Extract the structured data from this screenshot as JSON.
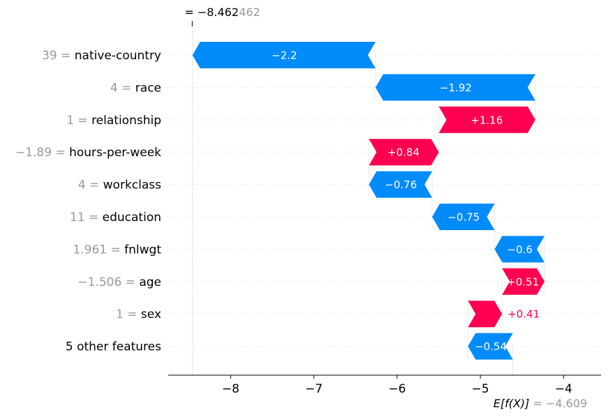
{
  "chart_data": {
    "type": "bar",
    "subtype": "waterfall",
    "fx_value": -8.462,
    "fx_label": "= −8.462",
    "fx_label_grey": "462",
    "base_value": -4.609,
    "base_label_prefix": "E[f(X)]",
    "base_label_value": "= −4.609",
    "xlim": [
      -8.75,
      -3.55
    ],
    "xticks": [
      {
        "value": -8,
        "label": "−8"
      },
      {
        "value": -7,
        "label": "−7"
      },
      {
        "value": -6,
        "label": "−6"
      },
      {
        "value": -5,
        "label": "−5"
      },
      {
        "value": -4,
        "label": "−4"
      }
    ],
    "features": [
      {
        "value_text": "39",
        "name": "native-country",
        "shap": -2.2,
        "label": "−2.2",
        "label_inside": true
      },
      {
        "value_text": "4",
        "name": "race",
        "shap": -1.92,
        "label": "−1.92",
        "label_inside": true
      },
      {
        "value_text": "1",
        "name": "relationship",
        "shap": 1.16,
        "label": "+1.16",
        "label_inside": true
      },
      {
        "value_text": "−1.89",
        "name": "hours-per-week",
        "shap": 0.84,
        "label": "+0.84",
        "label_inside": true
      },
      {
        "value_text": "4",
        "name": "workclass",
        "shap": -0.76,
        "label": "−0.76",
        "label_inside": true
      },
      {
        "value_text": "11",
        "name": "education",
        "shap": -0.75,
        "label": "−0.75",
        "label_inside": true
      },
      {
        "value_text": "1.961",
        "name": "fnlwgt",
        "shap": -0.6,
        "label": "−0.6",
        "label_inside": true
      },
      {
        "value_text": "−1.506",
        "name": "age",
        "shap": 0.51,
        "label": "+0.51",
        "label_inside": true
      },
      {
        "value_text": "1",
        "name": "sex",
        "shap": 0.41,
        "label": "+0.41",
        "label_inside": false
      },
      {
        "value_text": "",
        "name": "5 other features",
        "shap": -0.54,
        "label": "−0.54",
        "label_inside": true
      }
    ],
    "colors": {
      "positive": "#ff0051",
      "negative": "#008bfb",
      "grey": "#999999",
      "text": "#000000"
    }
  }
}
